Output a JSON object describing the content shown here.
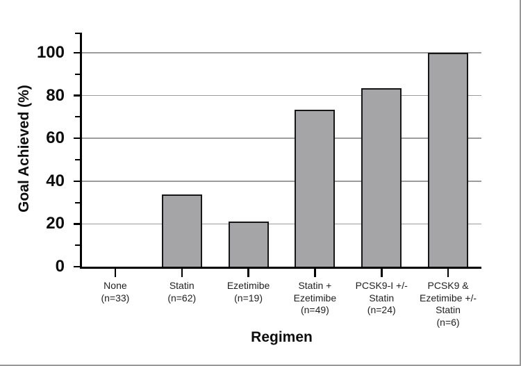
{
  "figure": {
    "background": "#ffffff",
    "frame_border_color": "#979797"
  },
  "chart_data": {
    "type": "bar",
    "title": "",
    "xlabel": "Regimen",
    "ylabel": "Goal Achieved (%)",
    "ylim": [
      0,
      110
    ],
    "yticks_major": [
      0,
      20,
      40,
      60,
      80,
      100
    ],
    "yticks_minor": [
      10,
      30,
      50,
      70,
      90,
      110
    ],
    "grid": "horizontal gridlines at major y ticks",
    "legend": "none",
    "categories": [
      "None\n(n=33)",
      "Statin\n(n=62)",
      "Ezetimibe\n(n=19)",
      "Statin +\nEzetimibe\n(n=49)",
      "PCSK9-I +/-\nStatin\n(n=24)",
      "PCSK9 &\nEzetimibe +/-\nStatin\n(n=6)"
    ],
    "values": [
      0,
      33.9,
      21.1,
      73.5,
      83.3,
      100
    ],
    "colors": {
      "bar_fill": "#a5a5a7",
      "bar_edge": "#161616",
      "axis": "#000000",
      "gridline": "#9c9c9c",
      "tick_label": "#0d0d0d",
      "category_label": "#1f1f1f"
    }
  }
}
